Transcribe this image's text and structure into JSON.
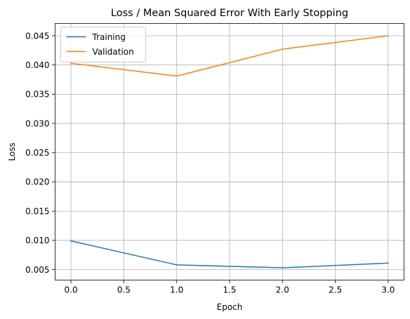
{
  "chart_data": {
    "type": "line",
    "title": "Loss / Mean Squared Error With Early Stopping",
    "xlabel": "Epoch",
    "ylabel": "Loss",
    "x": [
      0,
      1,
      2,
      3
    ],
    "xlim": [
      -0.15,
      3.15
    ],
    "ylim": [
      0.0032,
      0.0471
    ],
    "xticks": [
      0.0,
      0.5,
      1.0,
      1.5,
      2.0,
      2.5,
      3.0
    ],
    "xtick_labels": [
      "0.0",
      "0.5",
      "1.0",
      "1.5",
      "2.0",
      "2.5",
      "3.0"
    ],
    "yticks": [
      0.005,
      0.01,
      0.015,
      0.02,
      0.025,
      0.03,
      0.035,
      0.04,
      0.045
    ],
    "ytick_labels": [
      "0.005",
      "0.010",
      "0.015",
      "0.020",
      "0.025",
      "0.030",
      "0.035",
      "0.040",
      "0.045"
    ],
    "grid": true,
    "legend_position": "top-left",
    "series": [
      {
        "name": "Training",
        "color": "#1f77b4",
        "values": [
          0.0099,
          0.0058,
          0.0053,
          0.0061
        ]
      },
      {
        "name": "Validation",
        "color": "#ff7f0e",
        "values": [
          0.0403,
          0.0381,
          0.0427,
          0.045
        ]
      }
    ]
  }
}
